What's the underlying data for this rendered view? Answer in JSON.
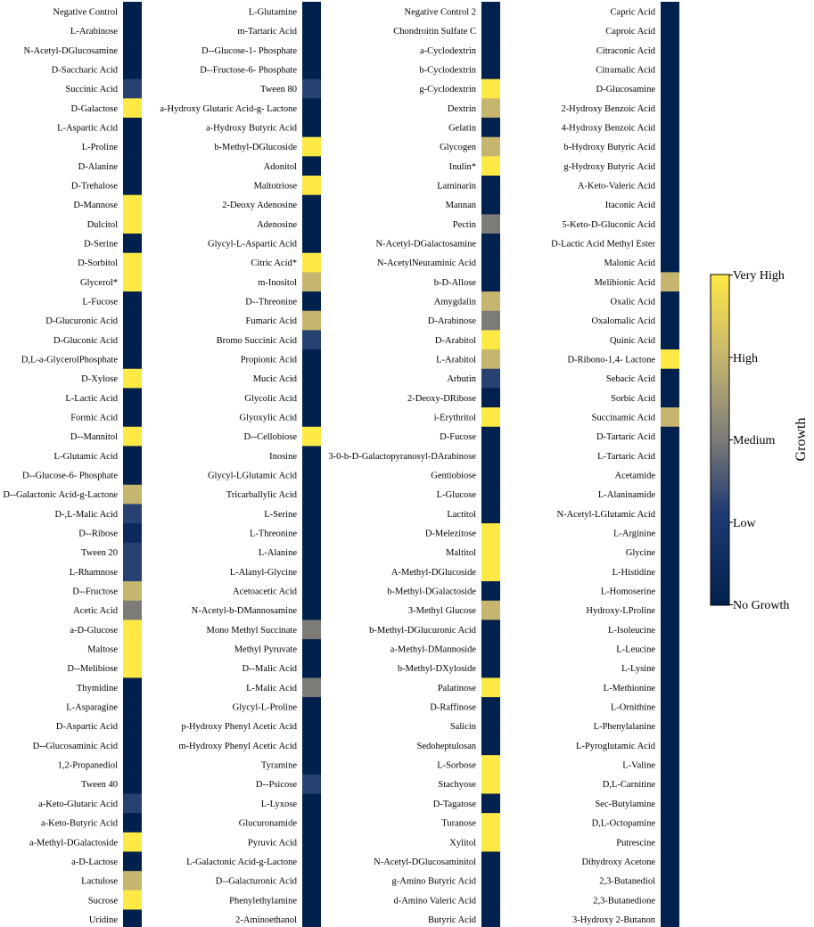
{
  "chart_data": {
    "type": "heatmap",
    "title": "",
    "level_names": [
      "No Growth",
      "Low",
      "Medium",
      "High",
      "Very High"
    ],
    "colorbar": {
      "label": "Growth",
      "ticks": [
        "Very High",
        "High",
        "Medium",
        "Low",
        "No Growth"
      ],
      "colors": {
        "min": "#00204d",
        "low": "#1f3b73",
        "mid": "#7c7b78",
        "high": "#c6b56e",
        "max": "#ffe945"
      }
    },
    "columns": [
      {
        "labels": [
          "Negative Control",
          "L-Arabinose",
          "N-Acetyl-DGlucosamine",
          "D-Saccharic Acid",
          "Succinic Acid",
          "D-Galactose",
          "L-Aspartic Acid",
          "L-Proline",
          "D-Alanine",
          "D-Trehalose",
          "D-Mannose",
          "Dulcitol",
          "D-Serine",
          "D-Sorbitol",
          "Glycerol*",
          "L-Fucose",
          "D-Glucuronic Acid",
          "D-Gluconic Acid",
          "D,L-a-GlycerolPhosphate",
          "D-Xylose",
          "L-Lactic Acid",
          "Formic Acid",
          "D--Mannitol",
          "L-Glutamic Acid",
          "D--Glucose-6- Phosphate",
          "D--Galactonic Acid-g-Lactone",
          "D-,L-Malic Acid",
          "D--Ribose",
          "Tween 20",
          "L-Rhamnose",
          "D--Fructose",
          "Acetic Acid",
          "a-D-Glucose",
          "Maltose",
          "D--Melibiose",
          "Thymidine",
          "L-Asparagine",
          "D-Aspartic Acid",
          "D--Glucosaminic Acid",
          "1,2-Propanediol",
          "Tween 40",
          "a-Keto-Glutaric Acid",
          "a-Keto-Butyric Acid",
          "a-Methyl-DGalactoside",
          "a-D-Lactose",
          "Lactulose",
          "Sucrose",
          "Uridine"
        ],
        "values": [
          0,
          0,
          0,
          0,
          0.3,
          1,
          0,
          0,
          0,
          0,
          1,
          1,
          0,
          1,
          1,
          0,
          0,
          0,
          0,
          1,
          0,
          0,
          1,
          0,
          0,
          0.75,
          0.3,
          0.1,
          0.3,
          0.3,
          0.75,
          0.5,
          1,
          1,
          1,
          0,
          0,
          0,
          0,
          0,
          0,
          0.3,
          0,
          1,
          0,
          0.75,
          1,
          0
        ]
      },
      {
        "labels": [
          "L-Glutamine",
          "m-Tartaric Acid",
          "D--Glucose-1- Phosphate",
          "D--Fructose-6- Phosphate",
          "Tween 80",
          "a-Hydroxy Glutaric Acid-g- Lactone",
          "a-Hydroxy Butyric Acid",
          "b-Methyl-DGlucoside",
          "Adonitol",
          "Maltotriose",
          "2-Deoxy Adenosine",
          "Adenosine",
          "Glycyl-L-Aspartic Acid",
          "Citric Acid*",
          "m-Inositol",
          "D--Threonine",
          "Fumaric Acid",
          "Bromo Succinic Acid",
          "Propionic Acid",
          "Mucic Acid",
          "Glycolic Acid",
          "Glyoxylic Acid",
          "D--Cellobiose",
          "Inosine",
          "Glycyl-LGlutamic Acid",
          "Tricarballylic Acid",
          "L-Serine",
          "L-Threonine",
          "L-Alanine",
          "L-Alanyl-Glycine",
          "Acetoacetic Acid",
          "N-Acetyl-b-DMannosamine",
          "Mono Methyl Succinate",
          "Methyl Pyruvate",
          "D--Malic Acid",
          "L-Malic Acid",
          "Glycyl-L-Proline",
          "p-Hydroxy Phenyl Acetic Acid",
          "m-Hydroxy Phenyl Acetic Acid",
          "Tyramine",
          "D--Psicose",
          "L-Lyxose",
          "Glucuronamide",
          "Pyruvic Acid",
          "L-Galactonic Acid-g-Lactone",
          "D--Galacturonic Acid",
          "Phenylethylamine",
          "2-Aminoethanol"
        ],
        "values": [
          0,
          0,
          0,
          0,
          0.3,
          0,
          0,
          1,
          0,
          1,
          0,
          0,
          0,
          1,
          0.75,
          0,
          0.75,
          0.3,
          0,
          0,
          0,
          0,
          1,
          0,
          0,
          0,
          0,
          0,
          0,
          0,
          0,
          0,
          0.5,
          0,
          0,
          0.5,
          0,
          0,
          0,
          0,
          0.3,
          0,
          0,
          0,
          0,
          0,
          0,
          0
        ]
      },
      {
        "labels": [
          "Negative Control 2",
          "Chondroitin Sulfate C",
          "a-Cyclodextrin",
          "b-Cyclodextrin",
          "g-Cyclodextrin",
          "Dextrin",
          "Gelatin",
          "Glycogen",
          "Inulin*",
          "Laminarin",
          "Mannan",
          "Pectin",
          "N-Acetyl-DGalactosamine",
          "N-AcetylNeuraminic Acid",
          "b-D-Allose",
          "Amygdalin",
          "D-Arabinose",
          "D-Arabitol",
          "L-Arabitol",
          "Arbutin",
          "2-Deoxy-DRibose",
          "i-Erythritol",
          "D-Fucose",
          "3-0-b-D-Galactopyranosyl-DArabinose",
          "Gentiobiose",
          "L-Glucose",
          "Lactitol",
          "D-Melezitose",
          "Maltitol",
          "A-Methyl-DGlucoside",
          "b-Methyl-DGalactoside",
          "3-Methyl Glucose",
          "b-Methyl-DGlucuronic Acid",
          "a-Methyl-DMannoside",
          "b-Methyl-DXyloside",
          "Palatinose",
          "D-Raffinose",
          "Salicin",
          "Sedoheptulosan",
          "L-Sorbose",
          "Stachyose",
          "D-Tagatose",
          "Turanose",
          "Xylitol",
          "N-Acetyl-DGlucosaminitol",
          "g-Amino Butyric Acid",
          "d-Amino Valeric Acid",
          "Butyric Acid"
        ],
        "values": [
          0,
          0,
          0,
          0,
          1,
          0.75,
          0,
          0.75,
          1,
          0,
          0,
          0.5,
          0,
          0,
          0,
          0.75,
          0.5,
          1,
          0.75,
          0.3,
          0,
          1,
          0,
          0,
          0,
          0,
          0,
          1,
          1,
          1,
          0,
          0.75,
          0,
          0,
          0,
          1,
          0,
          0,
          0,
          1,
          1,
          0,
          1,
          1,
          0,
          0,
          0,
          0
        ]
      },
      {
        "labels": [
          "Capric Acid",
          "Caproic Acid",
          "Citraconic Acid",
          "Citramalic Acid",
          "D-Glucosamine",
          "2-Hydroxy Benzoic Acid",
          "4-Hydroxy Benzoic Acid",
          "b-Hydroxy Butyric Acid",
          "g-Hydroxy Butyric Acid",
          "A-Keto-Valeric Acid",
          "Itaconic Acid",
          "5-Keto-D-Gluconic Acid",
          "D-Lactic Acid Methyl Ester",
          "Malonic Acid",
          "Melibionic Acid",
          "Oxalic Acid",
          "Oxalomalic Acid",
          "Quinic Acid",
          "D-Ribono-1,4- Lactone",
          "Sebacic Acid",
          "Sorbic Acid",
          "Succinamic Acid",
          "D-Tartaric Acid",
          "L-Tartaric Acid",
          "Acetamide",
          "L-Alaninamide",
          "N-Acetyl-LGlutamic Acid",
          "L-Arginine",
          "Glycine",
          "L-Histidine",
          "L-Homoserine",
          "Hydroxy-LProline",
          "L-Isoleucine",
          "L-Leucine",
          "L-Lysine",
          "L-Methionine",
          "L-Ornithine",
          "L-Phenylalanine",
          "L-Pyroglutamic Acid",
          "L-Valine",
          "D,L-Carnitine",
          "Sec-Butylamine",
          "D,L-Octopamine",
          "Putrescine",
          "Dihydroxy Acetone",
          "2,3-Butanediol",
          "2,3-Butanedione",
          "3-Hydroxy 2-Butanon"
        ],
        "values": [
          0,
          0,
          0,
          0,
          0,
          0,
          0,
          0,
          0,
          0,
          0,
          0,
          0,
          0,
          0.75,
          0,
          0,
          0,
          1,
          0,
          0,
          0.75,
          0,
          0,
          0,
          0,
          0,
          0,
          0,
          0,
          0,
          0,
          0,
          0,
          0,
          0,
          0,
          0,
          0,
          0,
          0,
          0,
          0,
          0,
          0,
          0,
          0,
          0
        ]
      }
    ]
  }
}
